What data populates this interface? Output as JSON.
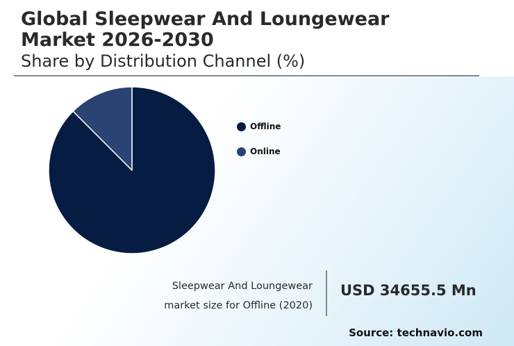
{
  "title": "Global Sleepwear And Loungewear Market 2026-2030",
  "subtitle": "Share by Distribution Channel (%)",
  "chart_data": {
    "type": "pie",
    "title": "Share by Distribution Channel (%)",
    "categories": [
      "Offline",
      "Online"
    ],
    "values": [
      87.5,
      12.5
    ],
    "colors": [
      "#071c42",
      "#2a4373"
    ],
    "legend_position": "right"
  },
  "caption": {
    "line1": "Sleepwear And Loungewear",
    "line2": "market size for Offline (2020)"
  },
  "market_value": "USD 34655.5 Mn",
  "source": "Source: technavio.com"
}
